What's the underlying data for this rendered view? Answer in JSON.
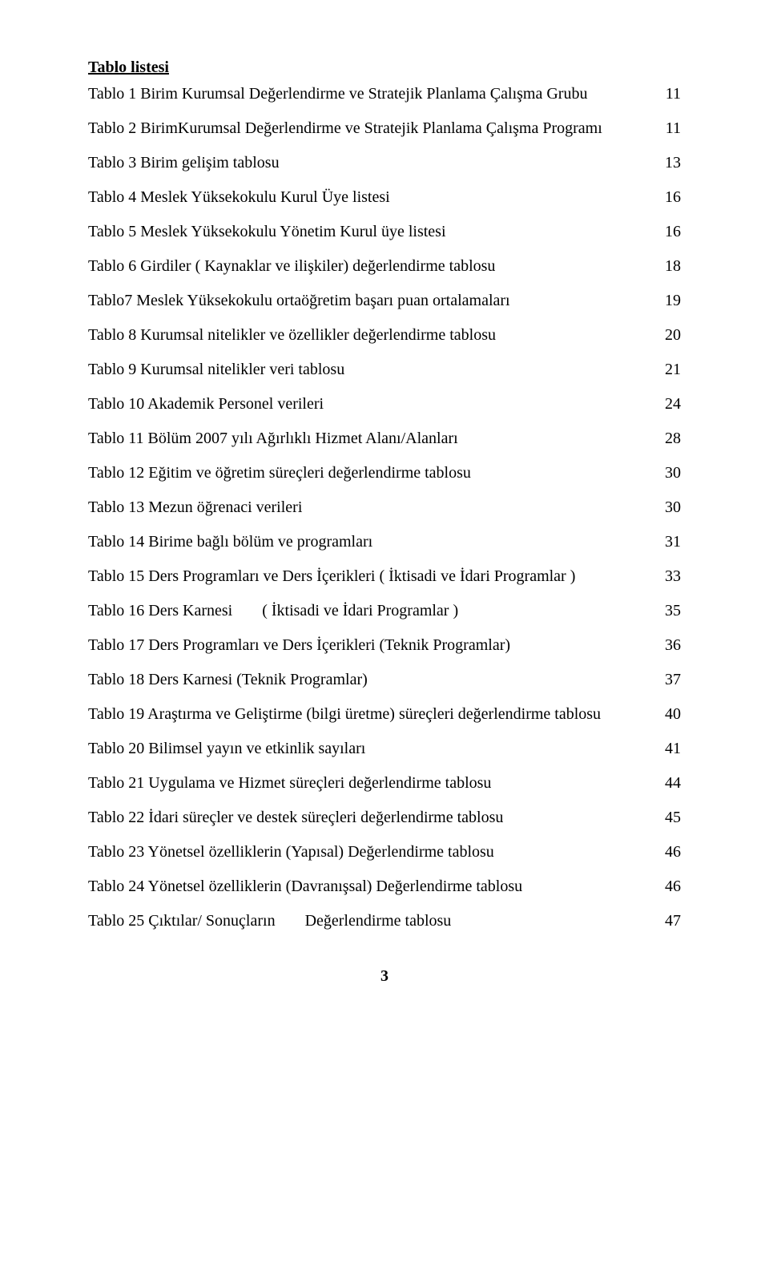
{
  "heading": "Tablo listesi",
  "entries": [
    {
      "label": "Tablo 1 Birim Kurumsal Değerlendirme ve Stratejik Planlama Çalışma Grubu",
      "page": "11"
    },
    {
      "label": "Tablo 2 BirimKurumsal Değerlendirme ve Stratejik Planlama Çalışma Programı",
      "page": "11"
    },
    {
      "label": "Tablo 3 Birim gelişim tablosu",
      "page": "13"
    },
    {
      "label": "Tablo 4 Meslek Yüksekokulu Kurul Üye listesi",
      "page": "16"
    },
    {
      "label": "Tablo 5 Meslek Yüksekokulu Yönetim Kurul üye listesi",
      "page": "16"
    },
    {
      "label": "Tablo 6 Girdiler ( Kaynaklar ve ilişkiler) değerlendirme tablosu",
      "page": "18"
    },
    {
      "label": "Tablo7 Meslek Yüksekokulu ortaöğretim başarı puan ortalamaları",
      "page": "19"
    },
    {
      "label": "Tablo 8 Kurumsal nitelikler ve özellikler değerlendirme tablosu",
      "page": "20"
    },
    {
      "label": "Tablo 9 Kurumsal nitelikler veri tablosu",
      "page": "21"
    },
    {
      "label": "Tablo 10 Akademik Personel verileri",
      "page": "24"
    },
    {
      "label": "Tablo 11 Bölüm 2007 yılı Ağırlıklı Hizmet Alanı/Alanları",
      "page": "28"
    },
    {
      "label": "Tablo 12 Eğitim ve öğretim süreçleri değerlendirme tablosu",
      "page": "30"
    },
    {
      "label": "Tablo 13 Mezun öğrenaci verileri",
      "page": "30"
    },
    {
      "label": "Tablo 14 Birime bağlı bölüm ve programları",
      "page": "31"
    },
    {
      "label": "Tablo 15 Ders Programları ve Ders İçerikleri ( İktisadi ve İdari Programlar )",
      "page": "33"
    },
    {
      "label_a": "Tablo 16 Ders Karnesi",
      "label_b": "( İktisadi ve İdari Programlar )",
      "page": "35"
    },
    {
      "label": "Tablo 17 Ders Programları ve Ders İçerikleri (Teknik Programlar)",
      "page": "36"
    },
    {
      "label": "Tablo 18 Ders Karnesi (Teknik Programlar)",
      "page": "37"
    },
    {
      "label": "Tablo 19 Araştırma ve Geliştirme (bilgi üretme) süreçleri değerlendirme tablosu",
      "page": "40"
    },
    {
      "label": "Tablo 20 Bilimsel yayın ve etkinlik sayıları",
      "page": "41"
    },
    {
      "label": "Tablo 21 Uygulama ve Hizmet süreçleri değerlendirme tablosu",
      "page": "44"
    },
    {
      "label": "Tablo 22 İdari süreçler ve destek süreçleri  değerlendirme tablosu",
      "page": "45"
    },
    {
      "label": "Tablo 23 Yönetsel özelliklerin (Yapısal) Değerlendirme tablosu",
      "page": "46"
    },
    {
      "label": "Tablo 24 Yönetsel özelliklerin (Davranışsal) Değerlendirme tablosu",
      "page": "46"
    },
    {
      "label_a": "Tablo 25 Çıktılar/ Sonuçların",
      "label_b": "Değerlendirme tablosu",
      "page": "47"
    }
  ],
  "page_number": "3"
}
